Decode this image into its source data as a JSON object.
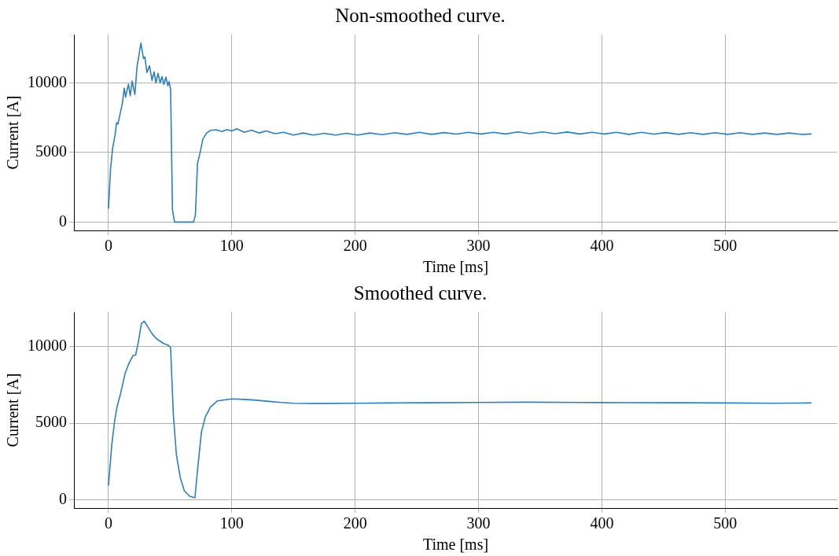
{
  "chart_data": [
    {
      "type": "line",
      "title": "Non-smoothed curve.",
      "xlabel": "Time [ms]",
      "ylabel": "Current [A]",
      "xlim": [
        -28,
        591
      ],
      "ylim": [
        -600,
        13470
      ],
      "xticks": [
        0,
        100,
        200,
        300,
        400,
        500
      ],
      "yticks": [
        0,
        5000,
        10000
      ],
      "grid": true,
      "x": [
        0,
        1.7,
        3.4,
        5.3,
        6.6,
        7.7,
        11.3,
        12.8,
        13.9,
        16.2,
        17.7,
        19.2,
        21.4,
        23.1,
        26.3,
        28.4,
        29.5,
        31.2,
        33.3,
        35.3,
        37,
        38.5,
        40.2,
        41.9,
        43.4,
        44.9,
        46.6,
        48.1,
        49.1,
        50.4,
        51.9,
        53.6,
        69,
        70.5,
        72.2,
        74.4,
        76.5,
        79.7,
        82.9,
        87.2,
        92,
        96,
        100,
        104,
        110,
        116,
        122,
        128,
        135,
        142,
        150,
        158,
        166,
        175,
        184,
        193,
        202,
        212,
        222,
        232,
        242,
        252,
        262,
        272,
        282,
        292,
        302,
        312,
        322,
        332,
        342,
        352,
        362,
        372,
        382,
        392,
        402,
        412,
        422,
        432,
        442,
        452,
        462,
        472,
        482,
        492,
        502,
        512,
        522,
        532,
        542,
        552,
        562,
        570
      ],
      "series": [
        {
          "color": "#2e7ebc",
          "values": [
            950,
            3830,
            5300,
            6230,
            7140,
            7050,
            8530,
            9630,
            8990,
            9910,
            9080,
            10130,
            9170,
            11100,
            12860,
            11750,
            11870,
            10740,
            11230,
            10180,
            10790,
            10000,
            10680,
            10000,
            10460,
            9890,
            10420,
            9800,
            10090,
            9540,
            880,
            0,
            0,
            510,
            4200,
            5030,
            5950,
            6410,
            6590,
            6630,
            6500,
            6650,
            6550,
            6700,
            6450,
            6600,
            6400,
            6550,
            6350,
            6450,
            6250,
            6400,
            6250,
            6380,
            6250,
            6380,
            6250,
            6400,
            6280,
            6420,
            6300,
            6450,
            6300,
            6430,
            6320,
            6450,
            6330,
            6450,
            6330,
            6480,
            6350,
            6480,
            6350,
            6470,
            6330,
            6450,
            6330,
            6450,
            6300,
            6450,
            6320,
            6430,
            6300,
            6420,
            6300,
            6420,
            6300,
            6420,
            6300,
            6400,
            6300,
            6400,
            6300,
            6330
          ]
        }
      ]
    },
    {
      "type": "line",
      "title": "Smoothed curve.",
      "xlabel": "Time [ms]",
      "ylabel": "Current [A]",
      "xlim": [
        -28,
        591
      ],
      "ylim": [
        -550,
        12250
      ],
      "xticks": [
        0,
        100,
        200,
        300,
        400,
        500
      ],
      "yticks": [
        0,
        5000,
        10000
      ],
      "grid": true,
      "x": [
        0,
        2.7,
        4.9,
        7,
        9.8,
        13.5,
        16.7,
        19.9,
        22,
        24.1,
        26.7,
        29,
        31.6,
        35.5,
        39.1,
        44.4,
        48.7,
        50.4,
        52.6,
        55.1,
        58.3,
        61.5,
        65.8,
        70.1,
        72.2,
        75.4,
        78.6,
        82.9,
        88.3,
        100,
        110,
        120,
        130,
        140,
        150,
        170,
        200,
        230,
        260,
        300,
        340,
        380,
        420,
        460,
        500,
        540,
        570
      ],
      "series": [
        {
          "color": "#2e7ebc",
          "values": [
            915,
            3580,
            5080,
            6080,
            6920,
            8250,
            8920,
            9420,
            9450,
            10250,
            11500,
            11670,
            11330,
            10830,
            10500,
            10220,
            10080,
            9920,
            5580,
            2920,
            1420,
            580,
            220,
            120,
            1920,
            4420,
            5420,
            6080,
            6450,
            6580,
            6550,
            6500,
            6420,
            6350,
            6300,
            6280,
            6300,
            6320,
            6330,
            6350,
            6370,
            6350,
            6340,
            6330,
            6320,
            6300,
            6320
          ]
        }
      ]
    }
  ]
}
